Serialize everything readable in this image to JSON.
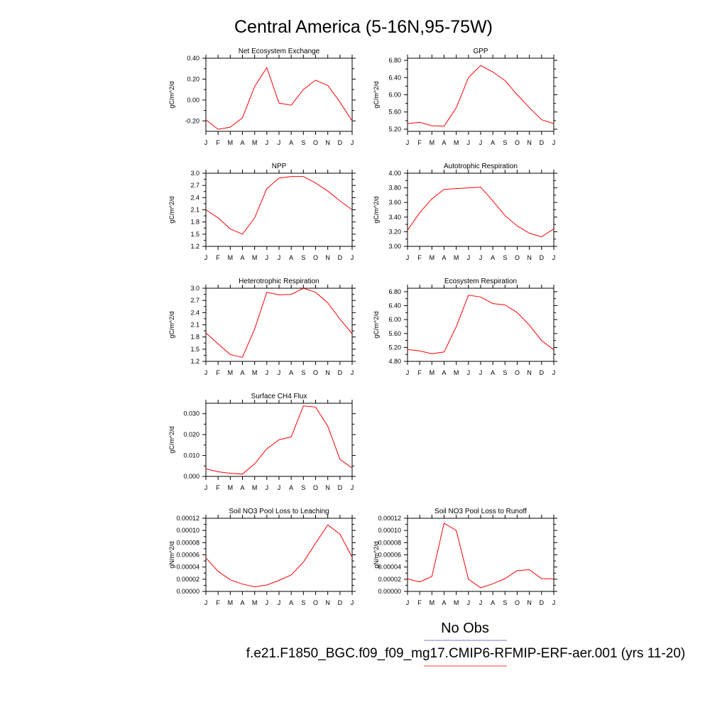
{
  "figure": {
    "title": "Central America (5-16N,95-75W)",
    "legend": [
      {
        "label": "No Obs",
        "color": "#7777ee"
      },
      {
        "label": "f.e21.F1850_BGC.f09_f09_mg17.CMIP6-RFMIP-ERF-aer.001 (yrs 11-20)",
        "color": "#ff3333"
      }
    ]
  },
  "chart_data": [
    {
      "type": "line",
      "title": "Net Ecosystem Exchange",
      "ylabel": "gC/m^2/d",
      "x": [
        "J",
        "F",
        "M",
        "A",
        "M",
        "J",
        "J",
        "A",
        "S",
        "O",
        "N",
        "D",
        "J"
      ],
      "ylim": [
        -0.3,
        0.4
      ],
      "yticks": [
        -0.2,
        0.0,
        0.2,
        0.4
      ],
      "ytick_labels": [
        "-0.20",
        "0.00",
        "0.20",
        "0.40"
      ],
      "series": [
        {
          "color": "#ff0000",
          "values": [
            -0.19,
            -0.28,
            -0.26,
            -0.17,
            0.13,
            0.31,
            -0.03,
            -0.05,
            0.1,
            0.19,
            0.14,
            -0.02,
            -0.2
          ]
        }
      ]
    },
    {
      "type": "line",
      "title": "GPP",
      "ylabel": "gC/m^2/d",
      "x": [
        "J",
        "F",
        "M",
        "A",
        "M",
        "J",
        "J",
        "A",
        "S",
        "O",
        "N",
        "D",
        "J"
      ],
      "ylim": [
        5.15,
        6.85
      ],
      "yticks": [
        5.2,
        5.6,
        6.0,
        6.4,
        6.8
      ],
      "ytick_labels": [
        "5.20",
        "5.60",
        "6.00",
        "6.40",
        "6.80"
      ],
      "series": [
        {
          "color": "#ff0000",
          "values": [
            5.33,
            5.36,
            5.28,
            5.27,
            5.7,
            6.4,
            6.68,
            6.53,
            6.33,
            6.0,
            5.7,
            5.42,
            5.33
          ]
        }
      ]
    },
    {
      "type": "line",
      "title": "NPP",
      "ylabel": "gC/m^2/d",
      "x": [
        "J",
        "F",
        "M",
        "A",
        "M",
        "J",
        "J",
        "A",
        "S",
        "O",
        "N",
        "D",
        "J"
      ],
      "ylim": [
        1.2,
        3.0
      ],
      "yticks": [
        1.2,
        1.5,
        1.8,
        2.1,
        2.4,
        2.7,
        3.0
      ],
      "ytick_labels": [
        "1.2",
        "1.5",
        "1.8",
        "2.1",
        "2.4",
        "2.7",
        "3.0"
      ],
      "series": [
        {
          "color": "#ff0000",
          "values": [
            2.1,
            1.9,
            1.63,
            1.5,
            1.9,
            2.62,
            2.88,
            2.92,
            2.92,
            2.76,
            2.56,
            2.32,
            2.1
          ]
        }
      ]
    },
    {
      "type": "line",
      "title": "Autotrophic Respiration",
      "ylabel": "gC/m^2/d",
      "x": [
        "J",
        "F",
        "M",
        "A",
        "M",
        "J",
        "J",
        "A",
        "S",
        "O",
        "N",
        "D",
        "J"
      ],
      "ylim": [
        3.0,
        4.0
      ],
      "yticks": [
        3.0,
        3.2,
        3.4,
        3.6,
        3.8,
        4.0
      ],
      "ytick_labels": [
        "3.00",
        "3.20",
        "3.40",
        "3.60",
        "3.80",
        "4.00"
      ],
      "series": [
        {
          "color": "#ff0000",
          "values": [
            3.22,
            3.46,
            3.65,
            3.78,
            3.79,
            3.8,
            3.81,
            3.62,
            3.42,
            3.28,
            3.18,
            3.13,
            3.24
          ]
        }
      ]
    },
    {
      "type": "line",
      "title": "Heterotrophic Respiration",
      "ylabel": "gC/m^2/d",
      "x": [
        "J",
        "F",
        "M",
        "A",
        "M",
        "J",
        "J",
        "A",
        "S",
        "O",
        "N",
        "D",
        "J"
      ],
      "ylim": [
        1.2,
        3.0
      ],
      "yticks": [
        1.2,
        1.5,
        1.8,
        2.1,
        2.4,
        2.7,
        3.0
      ],
      "ytick_labels": [
        "1.2",
        "1.5",
        "1.8",
        "2.1",
        "2.4",
        "2.7",
        "3.0"
      ],
      "series": [
        {
          "color": "#ff0000",
          "values": [
            1.9,
            1.63,
            1.37,
            1.3,
            2.0,
            2.9,
            2.84,
            2.85,
            3.0,
            2.9,
            2.64,
            2.24,
            1.88
          ]
        }
      ]
    },
    {
      "type": "line",
      "title": "Ecosystem Respiration",
      "ylabel": "gC/m^2/d",
      "x": [
        "J",
        "F",
        "M",
        "A",
        "M",
        "J",
        "J",
        "A",
        "S",
        "O",
        "N",
        "D",
        "J"
      ],
      "ylim": [
        4.8,
        6.9
      ],
      "yticks": [
        4.8,
        5.2,
        5.6,
        6.0,
        6.4,
        6.8
      ],
      "ytick_labels": [
        "4.80",
        "5.20",
        "5.60",
        "6.00",
        "6.40",
        "6.80"
      ],
      "series": [
        {
          "color": "#ff0000",
          "values": [
            5.14,
            5.1,
            5.02,
            5.07,
            5.8,
            6.7,
            6.65,
            6.46,
            6.42,
            6.2,
            5.84,
            5.4,
            5.13
          ]
        }
      ]
    },
    {
      "type": "line",
      "title": "Surface CH4 Flux",
      "ylabel": "gC/m^2/d",
      "x": [
        "J",
        "F",
        "M",
        "A",
        "M",
        "J",
        "J",
        "A",
        "S",
        "O",
        "N",
        "D",
        "J"
      ],
      "ylim": [
        0.0,
        0.035
      ],
      "yticks": [
        0.0,
        0.01,
        0.02,
        0.03
      ],
      "ytick_labels": [
        "0.000",
        "0.010",
        "0.020",
        "0.030"
      ],
      "series": [
        {
          "color": "#ff0000",
          "values": [
            0.0036,
            0.0022,
            0.0015,
            0.0011,
            0.006,
            0.0132,
            0.0175,
            0.0189,
            0.0337,
            0.0332,
            0.024,
            0.0082,
            0.004
          ]
        }
      ]
    },
    {
      "type": "line",
      "title": "Soil NO3 Pool Loss to Leaching",
      "ylabel": "gN/m^2/d",
      "x": [
        "J",
        "F",
        "M",
        "A",
        "M",
        "J",
        "J",
        "A",
        "S",
        "O",
        "N",
        "D",
        "J"
      ],
      "ylim": [
        0.0,
        0.00012
      ],
      "yticks": [
        0.0,
        2e-05,
        4e-05,
        6e-05,
        8e-05,
        0.0001,
        0.00012
      ],
      "ytick_labels": [
        "0.00000",
        "0.00002",
        "0.00004",
        "0.00006",
        "0.00008",
        "0.00010",
        "0.00012"
      ],
      "series": [
        {
          "color": "#ff0000",
          "values": [
            5.5e-05,
            3.3e-05,
            1.9e-05,
            1.2e-05,
            7.5e-06,
            1.05e-05,
            1.8e-05,
            2.7e-05,
            4.8e-05,
            7.9e-05,
            0.000109,
            9.4e-05,
            5.6e-05
          ]
        }
      ]
    },
    {
      "type": "line",
      "title": "Soil NO3 Pool Loss to Runoff",
      "ylabel": "gN/m^2/d",
      "x": [
        "J",
        "F",
        "M",
        "A",
        "M",
        "J",
        "J",
        "A",
        "S",
        "O",
        "N",
        "D",
        "J"
      ],
      "ylim": [
        0.0,
        0.00012
      ],
      "yticks": [
        0.0,
        2e-05,
        4e-05,
        6e-05,
        8e-05,
        0.0001,
        0.00012
      ],
      "ytick_labels": [
        "0.00000",
        "0.00002",
        "0.00004",
        "0.00006",
        "0.00008",
        "0.00010",
        "0.00012"
      ],
      "series": [
        {
          "color": "#ff0000",
          "values": [
            2.05e-05,
            1.55e-05,
            2.45e-05,
            0.000112,
            0.0001,
            2e-05,
            6e-06,
            1.25e-05,
            2.1e-05,
            3.4e-05,
            3.55e-05,
            2.1e-05,
            2.05e-05
          ]
        }
      ]
    }
  ]
}
